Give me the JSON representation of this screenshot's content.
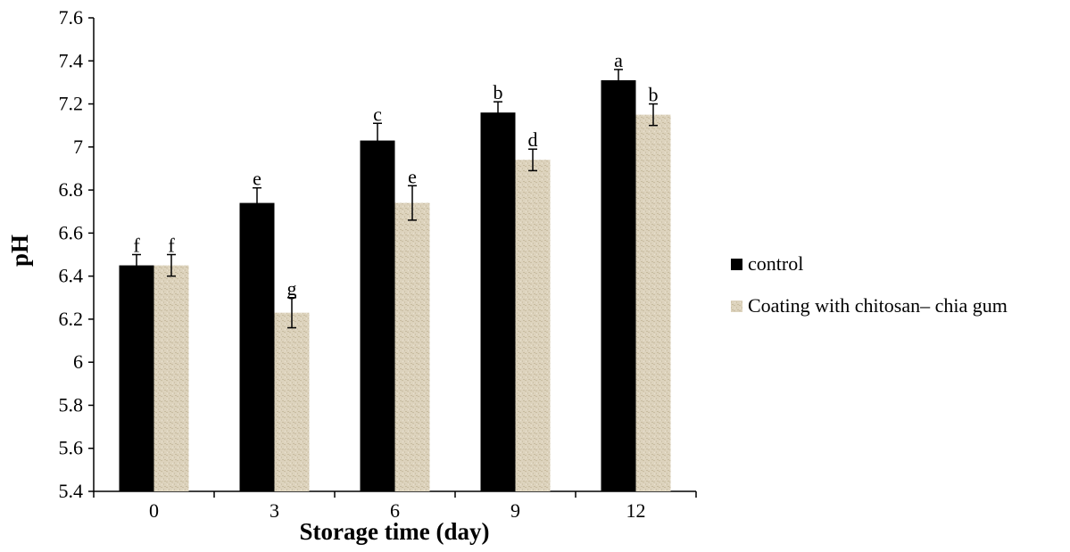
{
  "chart_data": {
    "type": "bar",
    "title": "",
    "xlabel": "Storage time (day)",
    "ylabel": "pH",
    "categories": [
      "0",
      "3",
      "6",
      "9",
      "12"
    ],
    "ylim": [
      5.4,
      7.6
    ],
    "yticks": [
      "5.4",
      "5.6",
      "5.8",
      "6",
      "6.2",
      "6.4",
      "6.6",
      "6.8",
      "7",
      "7.2",
      "7.4",
      "7.6"
    ],
    "grid": false,
    "legend_position": "right",
    "series": [
      {
        "name": "control",
        "color": "#000000",
        "values": [
          6.45,
          6.74,
          7.03,
          7.16,
          7.31
        ],
        "errors": [
          0.05,
          0.07,
          0.08,
          0.05,
          0.05
        ],
        "letters": [
          "f",
          "e",
          "c",
          "b",
          "a"
        ]
      },
      {
        "name": "Coating with chitosan– chia gum",
        "color": "#ddd3bd",
        "values": [
          6.45,
          6.23,
          6.74,
          6.94,
          7.15
        ],
        "errors": [
          0.05,
          0.07,
          0.08,
          0.05,
          0.05
        ],
        "letters": [
          "f",
          "g",
          "e",
          "d",
          "b"
        ]
      }
    ]
  }
}
